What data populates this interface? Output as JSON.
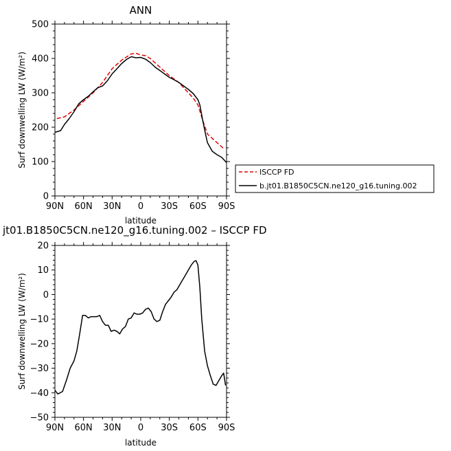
{
  "chart_data": [
    {
      "type": "line",
      "title": "ANN",
      "xlabel": "latitude",
      "ylabel": "Surf downwelling LW (W/m²)",
      "xlim": [
        90,
        -90
      ],
      "ylim": [
        0,
        500
      ],
      "xticks": [
        90,
        60,
        30,
        0,
        -30,
        -60,
        -90
      ],
      "xtick_labels": [
        "90N",
        "60N",
        "30N",
        "0",
        "30S",
        "60S",
        "90S"
      ],
      "yticks": [
        0,
        100,
        200,
        300,
        400,
        500
      ],
      "ytick_labels": [
        "0",
        "100",
        "200",
        "300",
        "400",
        "500"
      ],
      "legend_position": "right",
      "series": [
        {
          "name": "ISCCP FD",
          "color": "#e00000",
          "dash": "dashed",
          "x": [
            88,
            80,
            70,
            60,
            50,
            40,
            30,
            20,
            10,
            5,
            0,
            -5,
            -10,
            -20,
            -30,
            -40,
            -50,
            -55,
            -60,
            -65,
            -70,
            -80,
            -88
          ],
          "y": [
            225,
            230,
            250,
            275,
            300,
            330,
            370,
            395,
            413,
            415,
            410,
            408,
            400,
            375,
            350,
            330,
            300,
            285,
            265,
            220,
            180,
            155,
            135
          ]
        },
        {
          "name": "b.jt01.B1850C5CN.ne120_g16.tuning.002",
          "color": "#000000",
          "dash": "solid",
          "x": [
            90,
            84,
            80,
            75,
            70,
            65,
            60,
            55,
            50,
            45,
            40,
            35,
            30,
            25,
            20,
            15,
            10,
            5,
            0,
            -5,
            -10,
            -15,
            -20,
            -25,
            -30,
            -35,
            -40,
            -45,
            -50,
            -55,
            -60,
            -62,
            -65,
            -68,
            -70,
            -75,
            -80,
            -85,
            -90
          ],
          "y": [
            185,
            190,
            208,
            225,
            245,
            268,
            280,
            290,
            303,
            315,
            320,
            335,
            355,
            370,
            385,
            397,
            405,
            402,
            403,
            398,
            388,
            375,
            365,
            355,
            345,
            338,
            330,
            320,
            310,
            298,
            280,
            265,
            220,
            180,
            155,
            130,
            120,
            112,
            97
          ]
        }
      ]
    },
    {
      "type": "line",
      "title": "jt01.B1850C5CN.ne120_g16.tuning.002 – ISCCP FD",
      "xlabel": "latitude",
      "ylabel": "Surf downwelling LW (W/m²)",
      "xlim": [
        90,
        -90
      ],
      "ylim": [
        -50,
        20
      ],
      "xticks": [
        90,
        60,
        30,
        0,
        -30,
        -60,
        -90
      ],
      "xtick_labels": [
        "90N",
        "60N",
        "30N",
        "0",
        "30S",
        "60S",
        "90S"
      ],
      "yticks": [
        -50,
        -40,
        -30,
        -20,
        -10,
        0,
        10,
        20
      ],
      "ytick_labels": [
        "−50",
        "−40",
        "−30",
        "−20",
        "−10",
        "0",
        "10",
        "20"
      ],
      "series": [
        {
          "color": "#000000",
          "dash": "solid",
          "x": [
            90,
            87,
            82,
            78,
            74,
            70,
            67,
            64,
            61,
            58,
            55,
            52,
            49,
            46,
            43,
            40,
            37,
            34,
            31,
            28,
            25,
            22,
            19,
            16,
            13,
            10,
            7,
            4,
            1,
            -2,
            -5,
            -8,
            -11,
            -14,
            -17,
            -20,
            -23,
            -26,
            -29,
            -32,
            -35,
            -38,
            -41,
            -44,
            -47,
            -50,
            -53,
            -56,
            -58,
            -60,
            -62,
            -64,
            -67,
            -70,
            -73,
            -76,
            -79,
            -82,
            -85,
            -87,
            -89
          ],
          "y": [
            -39,
            -40.5,
            -39.5,
            -35,
            -30,
            -27,
            -23,
            -16,
            -8.5,
            -8.5,
            -9.5,
            -9,
            -9,
            -9,
            -8.5,
            -11,
            -12.5,
            -12.5,
            -15,
            -14.5,
            -15,
            -16,
            -14,
            -13,
            -10,
            -9.5,
            -7.5,
            -8,
            -8,
            -7.5,
            -6,
            -5.5,
            -7,
            -10,
            -11,
            -10.5,
            -7,
            -4,
            -2.5,
            -1,
            1,
            2,
            4,
            6,
            8,
            10,
            12,
            13.5,
            13.8,
            12,
            3,
            -10,
            -23,
            -29,
            -33,
            -36.5,
            -37,
            -35,
            -33,
            -32,
            -37
          ]
        }
      ]
    }
  ]
}
